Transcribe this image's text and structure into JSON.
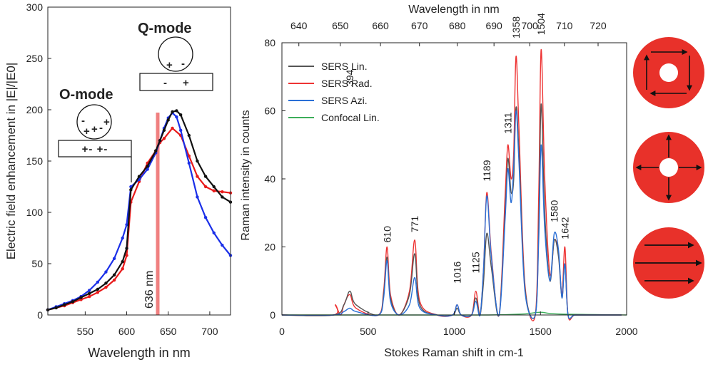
{
  "chart_data": [
    {
      "type": "line",
      "xlabel": "Wavelength in nm",
      "ylabel": "Electric field enhancement in |E|/|E0|",
      "xlim": [
        505,
        725
      ],
      "ylim": [
        0,
        300
      ],
      "xticks": [
        "550",
        "600",
        "650",
        "700"
      ],
      "yticks": [
        "0",
        "50",
        "100",
        "150",
        "200",
        "250",
        "300"
      ],
      "colors": [
        "#e81a1a",
        "#1a2fe8",
        "#111111"
      ],
      "series": [
        {
          "color": "#e81a1a",
          "x": [
            505,
            515,
            525,
            535,
            545,
            555,
            565,
            575,
            585,
            595,
            600,
            605,
            615,
            625,
            635,
            640,
            645,
            655,
            665,
            675,
            685,
            695,
            705,
            715,
            725
          ],
          "y": [
            5,
            7,
            9,
            12,
            15,
            18,
            22,
            27,
            34,
            45,
            58,
            110,
            130,
            148,
            160,
            168,
            172,
            182,
            175,
            155,
            135,
            125,
            121,
            120,
            119
          ]
        },
        {
          "color": "#1a2fe8",
          "x": [
            505,
            515,
            525,
            535,
            545,
            555,
            565,
            575,
            585,
            595,
            600,
            605,
            615,
            625,
            635,
            640,
            645,
            650,
            655,
            660,
            665,
            675,
            685,
            695,
            705,
            715,
            725
          ],
          "y": [
            5,
            8,
            11,
            14,
            18,
            24,
            32,
            42,
            55,
            75,
            88,
            125,
            132,
            142,
            158,
            170,
            182,
            192,
            197,
            193,
            180,
            148,
            115,
            95,
            80,
            68,
            58
          ]
        },
        {
          "color": "#111111",
          "x": [
            505,
            515,
            525,
            535,
            545,
            555,
            565,
            575,
            585,
            595,
            600,
            605,
            615,
            625,
            635,
            640,
            645,
            650,
            655,
            660,
            665,
            675,
            685,
            695,
            705,
            715,
            725
          ],
          "y": [
            5,
            7,
            10,
            13,
            17,
            21,
            25,
            31,
            39,
            52,
            65,
            122,
            135,
            145,
            160,
            170,
            180,
            190,
            198,
            199,
            195,
            175,
            150,
            135,
            125,
            115,
            110
          ]
        }
      ],
      "annotations": {
        "laser_label": "636 nm",
        "o_mode": {
          "title": "O-mode",
          "sphere_charges": [
            "-",
            "+",
            "+",
            "-",
            "+"
          ],
          "substrate_charges": "+- +-"
        },
        "q_mode": {
          "title": "Q-mode",
          "sphere_charges": [
            "+",
            "-"
          ],
          "substrate_charges": [
            "-",
            "+"
          ]
        }
      }
    },
    {
      "type": "line",
      "xlabel": "Stokes Raman shift in cm-1",
      "ylabel": "Raman intensity in counts",
      "top_xlabel": "Wavelength in nm",
      "xlim": [
        0,
        2000
      ],
      "ylim": [
        0,
        80
      ],
      "xticks": [
        "0",
        "500",
        "1000",
        "1500",
        "2000"
      ],
      "yticks": [
        "0",
        "20",
        "40",
        "60",
        "80"
      ],
      "top_xticks": [
        "640",
        "650",
        "660",
        "670",
        "680",
        "690",
        "700",
        "710",
        "720"
      ],
      "legend": {
        "position": "top-left",
        "entries": [
          {
            "name": "SERS Lin.",
            "color": "#555555"
          },
          {
            "name": "SERS Rad.",
            "color": "#ee3333"
          },
          {
            "name": "SERS Azi.",
            "color": "#2a6fd6"
          },
          {
            "name": "Confocal Lin.",
            "color": "#3cae5a"
          }
        ]
      },
      "peaks": [
        {
          "label": "394",
          "shift": 394
        },
        {
          "label": "610",
          "shift": 610
        },
        {
          "label": "771",
          "shift": 771
        },
        {
          "label": "1016",
          "shift": 1016
        },
        {
          "label": "1125",
          "shift": 1125
        },
        {
          "label": "1189",
          "shift": 1189
        },
        {
          "label": "1311",
          "shift": 1311
        },
        {
          "label": "1358",
          "shift": 1358
        },
        {
          "label": "1504",
          "shift": 1504
        },
        {
          "label": "1580",
          "shift": 1580
        },
        {
          "label": "1642",
          "shift": 1642
        }
      ],
      "series": [
        {
          "name": "SERS Lin.",
          "color": "#555555",
          "x": [
            0,
            300,
            360,
            394,
            430,
            560,
            590,
            610,
            630,
            680,
            740,
            771,
            800,
            900,
            990,
            1016,
            1040,
            1100,
            1125,
            1150,
            1170,
            1189,
            1215,
            1260,
            1295,
            1311,
            1330,
            1345,
            1358,
            1375,
            1410,
            1470,
            1490,
            1504,
            1525,
            1555,
            1580,
            1605,
            1625,
            1642,
            1660,
            1700,
            1800,
            1900,
            1970
          ],
          "y": [
            0,
            0,
            3,
            7,
            3,
            0,
            6,
            17,
            5,
            0,
            6,
            18,
            3,
            0,
            0,
            2,
            0,
            0,
            5,
            0,
            10,
            24,
            14,
            0,
            30,
            46,
            36,
            40,
            61,
            48,
            8,
            0,
            25,
            62,
            30,
            10,
            22,
            17,
            5,
            15,
            0,
            0,
            0,
            0,
            0
          ]
        },
        {
          "name": "SERS Rad.",
          "color": "#ee3333",
          "x": [
            0,
            300,
            310,
            340,
            360,
            394,
            430,
            560,
            590,
            610,
            630,
            680,
            740,
            771,
            800,
            900,
            990,
            1016,
            1040,
            1100,
            1125,
            1150,
            1170,
            1189,
            1215,
            1260,
            1295,
            1311,
            1330,
            1345,
            1358,
            1375,
            1410,
            1470,
            1490,
            1504,
            1525,
            1555,
            1580,
            1605,
            1625,
            1642,
            1660,
            1700,
            1800,
            1900,
            1970
          ],
          "y": [
            0,
            0,
            3,
            0,
            3,
            6,
            2,
            0,
            7,
            20,
            6,
            0,
            7,
            22,
            4,
            0,
            0,
            3,
            0,
            0,
            7,
            0,
            14,
            36,
            18,
            0,
            35,
            50,
            40,
            48,
            76,
            55,
            9,
            0,
            35,
            78,
            40,
            12,
            22,
            18,
            6,
            20,
            0,
            0,
            0,
            0,
            0
          ]
        },
        {
          "name": "SERS Azi.",
          "color": "#2a6fd6",
          "x": [
            0,
            300,
            360,
            394,
            430,
            560,
            590,
            610,
            630,
            680,
            740,
            771,
            800,
            900,
            990,
            1016,
            1040,
            1100,
            1125,
            1150,
            1170,
            1189,
            1215,
            1260,
            1295,
            1311,
            1330,
            1345,
            1358,
            1375,
            1410,
            1470,
            1490,
            1504,
            1525,
            1555,
            1580,
            1605,
            1625,
            1642,
            1660,
            1700,
            1800,
            1900,
            1970
          ],
          "y": [
            0,
            0,
            1,
            2,
            1,
            0,
            5,
            16,
            4,
            0,
            3,
            11,
            2,
            0,
            0,
            3,
            0,
            0,
            4,
            0,
            14,
            35,
            17,
            0,
            28,
            43,
            33,
            44,
            60,
            45,
            7,
            0,
            22,
            50,
            25,
            10,
            24,
            19,
            5,
            15,
            0,
            0,
            0,
            0,
            0
          ]
        },
        {
          "name": "Confocal Lin.",
          "color": "#3cae5a",
          "x": [
            0,
            400,
            800,
            1200,
            1400,
            1500,
            1600,
            2000
          ],
          "y": [
            0,
            0,
            0,
            0,
            0.3,
            0.8,
            0.3,
            0
          ]
        }
      ]
    }
  ],
  "icons": [
    {
      "name": "azimuthal-polarization-icon",
      "color": "#e8312a"
    },
    {
      "name": "radial-polarization-icon",
      "color": "#e8312a"
    },
    {
      "name": "linear-polarization-icon",
      "color": "#e8312a"
    }
  ]
}
